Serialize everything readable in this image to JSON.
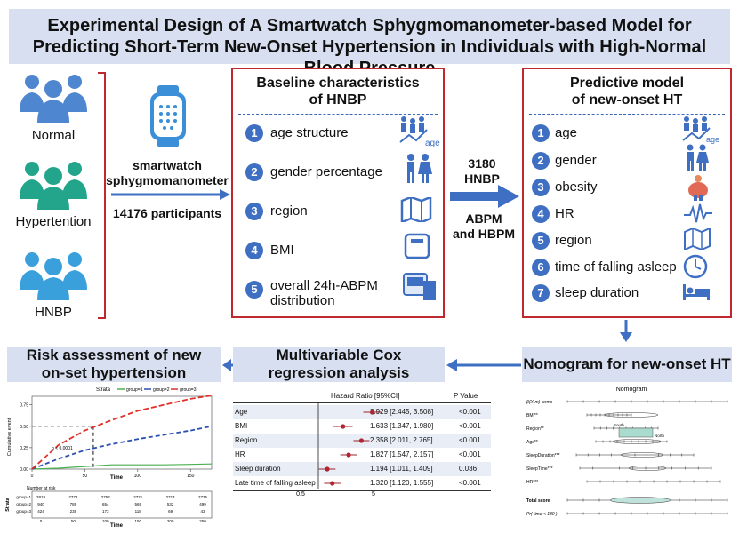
{
  "title": {
    "line1": "Experimental Design of A Smartwatch Sphygmomanometer-based Model for",
    "line2": "Predicting Short-Term New-Onset Hypertension in Individuals with High-Normal Blood Pressure"
  },
  "groups": [
    "Normal",
    "Hypertention",
    "HNBP"
  ],
  "device": {
    "label_line1": "smartwatch",
    "label_line2": "sphygmomanometer",
    "participants": "14176 participants"
  },
  "baseline": {
    "title_line1": "Baseline characteristics",
    "title_line2": "of HNBP",
    "items": [
      {
        "num": "1",
        "text": "age structure",
        "icon": "age-icon"
      },
      {
        "num": "2",
        "text": "gender percentage",
        "icon": "gender-icon"
      },
      {
        "num": "3",
        "text": "region",
        "icon": "map-icon"
      },
      {
        "num": "4",
        "text": "BMI",
        "icon": "scale-icon"
      },
      {
        "num": "5",
        "text_line1": "overall 24h-ABPM",
        "text_line2": "distribution",
        "icon": "monitor-icon"
      }
    ]
  },
  "flow_labels": {
    "count": "3180",
    "hnbp": "HNBP",
    "abpm": "ABPM",
    "hbpm": "and HBPM"
  },
  "predictive": {
    "title_line1": "Predictive model",
    "title_line2": "of new-onset HT",
    "items": [
      {
        "num": "1",
        "text": "age",
        "icon": "age-icon"
      },
      {
        "num": "2",
        "text": "gender",
        "icon": "gender-icon"
      },
      {
        "num": "3",
        "text": "obesity",
        "icon": "obesity-icon"
      },
      {
        "num": "4",
        "text": "HR",
        "icon": "heart-rate-icon"
      },
      {
        "num": "5",
        "text": "region",
        "icon": "map-icon"
      },
      {
        "num": "6",
        "text": "time of falling asleep",
        "icon": "clock-icon"
      },
      {
        "num": "7",
        "text": "sleep duration",
        "icon": "bed-icon"
      }
    ]
  },
  "age_icon_label": "age",
  "risk": {
    "title_line1": "Risk assessment of new",
    "title_line2": "on-set hypertension",
    "plot_title": "Strata",
    "legend": [
      "group=1",
      "group=2",
      "group=3"
    ],
    "ylabel": "Cumulative event",
    "xlabel": "Time",
    "pvalue": "p < 0.0001",
    "yticks": [
      "0.75",
      "0.50",
      "0.25",
      "0.00"
    ],
    "xticks": [
      "0",
      "50",
      "100",
      "150"
    ],
    "risk_title": "Number at risk",
    "risk_strata_label": "Strata",
    "risk_rows": [
      {
        "name": "group=1",
        "values": [
          "2819",
          "2772",
          "2752",
          "2721",
          "2714",
          "2735"
        ]
      },
      {
        "name": "group=2",
        "values": [
          "940",
          "789",
          "654",
          "569",
          "532",
          "499"
        ]
      },
      {
        "name": "group=3",
        "values": [
          "424",
          "238",
          "173",
          "118",
          "69",
          "43"
        ]
      }
    ],
    "risk_xticks": [
      "0",
      "50",
      "100",
      "150",
      "200",
      "250"
    ],
    "risk_xlabel": "Time"
  },
  "cox": {
    "title_line1": "Multivariable Cox",
    "title_line2": "regression analysis",
    "header_hr": "Hazard  Ratio  [95%CI]",
    "header_p": "P Value",
    "rows": [
      {
        "var": "Age",
        "hr": "2.929 [2.445, 3.508]",
        "p": "<0.001"
      },
      {
        "var": "BMI",
        "hr": "1.633 [1.347, 1.980]",
        "p": "<0.001"
      },
      {
        "var": "Region",
        "hr": "2.358 [2.011, 2.765]",
        "p": "<0.001"
      },
      {
        "var": "HR",
        "hr": "1.827 [1.547, 2.157]",
        "p": "<0.001"
      },
      {
        "var": "Sleep duration",
        "hr": "1.194 [1.011, 1.409]",
        "p": "0.036"
      },
      {
        "var": "Late time of falling asleep",
        "hr": "1.320 [1.120, 1.555]",
        "p": "<0.001"
      }
    ],
    "axis_ticks": [
      "0.5",
      "5"
    ]
  },
  "nomogram": {
    "section_title": "Nomogram for new-onset HT",
    "plot_title": "Nomogram",
    "rows": [
      "β(X-m) terms",
      "BMI**",
      "Region**",
      "Age**",
      "SleepDuration***",
      "SleepTime***",
      "HR***",
      "Total score",
      "Pr( time < 180 )"
    ],
    "region_labels": [
      "South",
      "North"
    ]
  },
  "chart_data": [
    {
      "type": "line",
      "title": "Strata",
      "xlabel": "Time",
      "ylabel": "Cumulative event",
      "xlim": [
        0,
        170
      ],
      "ylim": [
        0,
        0.85
      ],
      "x": [
        0,
        25,
        50,
        75,
        100,
        125,
        150,
        170
      ],
      "series": [
        {
          "name": "group=1",
          "values": [
            0,
            0.01,
            0.03,
            0.05,
            0.05,
            0.05,
            0.055,
            0.06
          ]
        },
        {
          "name": "group=2",
          "values": [
            0,
            0.12,
            0.22,
            0.29,
            0.35,
            0.4,
            0.45,
            0.5
          ]
        },
        {
          "name": "group=3",
          "values": [
            0,
            0.28,
            0.45,
            0.57,
            0.68,
            0.75,
            0.82,
            0.86
          ]
        }
      ],
      "annotations": [
        "p < 0.0001"
      ]
    },
    {
      "type": "scatter",
      "title": "Multivariable Cox regression analysis",
      "categories": [
        "Age",
        "BMI",
        "Region",
        "HR",
        "Sleep duration",
        "Late time of falling asleep"
      ],
      "values": [
        2.929,
        1.633,
        2.358,
        1.827,
        1.194,
        1.32
      ],
      "ci_low": [
        2.445,
        1.347,
        2.011,
        1.547,
        1.011,
        1.12
      ],
      "ci_high": [
        3.508,
        1.98,
        2.765,
        2.157,
        1.409,
        1.555
      ],
      "xlabel": "",
      "ylabel": ""
    }
  ],
  "colors": {
    "banner": "#d7dff0",
    "accent_red": "#c0282f",
    "accent_blue": "#3e6fc2",
    "person_blue": "#4f86d0",
    "person_green": "#22a58a",
    "person_lightblue": "#3aa0dc",
    "km_green": "#4caf50",
    "km_blue": "#2a4fb0",
    "km_red": "#e0302a"
  }
}
